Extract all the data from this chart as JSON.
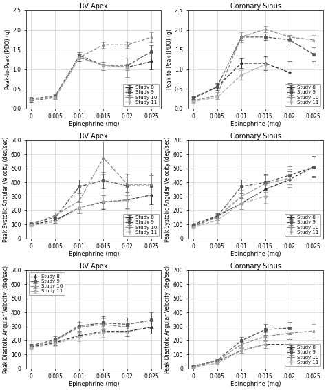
{
  "x_vals": [
    0,
    0.005,
    0.01,
    0.015,
    0.02,
    0.025
  ],
  "x_ticks": [
    0,
    0.005,
    0.01,
    0.015,
    0.02,
    0.025
  ],
  "x_label": "Epinephrine (mg)",
  "panel_titles": [
    [
      "RV Apex",
      "Coronary Sinus"
    ],
    [
      "RV Apex",
      "Coronary Sinus"
    ],
    [
      "RV Apex",
      "Coronary Sinus"
    ]
  ],
  "study_labels": [
    "Study 8",
    "Study 9",
    "Study 10",
    "Study 11"
  ],
  "row0_ylim": [
    0,
    2.5
  ],
  "row0_yticks": [
    0,
    0.5,
    1.0,
    1.5,
    2.0,
    2.5
  ],
  "row0_ylabel": "Peak-to-Peak (PDO) (g)",
  "row1_ylim": [
    0,
    700
  ],
  "row1_yticks": [
    0,
    100,
    200,
    300,
    400,
    500,
    600,
    700
  ],
  "row1_ylabel": "Peak Systolic Angular Velocity (deg/sec)",
  "row2_ylim": [
    0,
    700
  ],
  "row2_yticks": [
    0,
    100,
    200,
    300,
    400,
    500,
    600,
    700
  ],
  "row2_ylabel": "Peak Diastolic Angular Velocity (deg/sec)",
  "rv_apex_row0": {
    "y": [
      [
        0.2,
        0.28,
        1.3,
        1.1,
        1.05,
        1.2
      ],
      [
        0.25,
        0.32,
        1.35,
        1.1,
        1.1,
        1.45
      ],
      [
        0.22,
        0.3,
        1.3,
        1.62,
        1.62,
        1.82
      ],
      [
        0.22,
        0.28,
        1.3,
        1.1,
        1.05,
        null
      ]
    ],
    "yerr": [
      [
        0.04,
        0.04,
        0.1,
        0.12,
        0.25,
        0.2
      ],
      [
        0.04,
        0.04,
        0.08,
        0.08,
        0.12,
        0.15
      ],
      [
        0.04,
        0.04,
        0.08,
        0.08,
        0.08,
        0.12
      ],
      [
        0.04,
        0.04,
        0.08,
        0.12,
        0.25,
        null
      ]
    ]
  },
  "cs_row0": {
    "y": [
      [
        0.25,
        0.55,
        1.15,
        1.15,
        0.92,
        null
      ],
      [
        0.28,
        0.55,
        1.82,
        1.82,
        1.75,
        1.38
      ],
      [
        0.2,
        0.33,
        1.82,
        2.02,
        1.82,
        1.75
      ],
      [
        0.18,
        0.28,
        0.85,
        1.12,
        null,
        null
      ]
    ],
    "yerr": [
      [
        0.04,
        0.1,
        0.12,
        0.18,
        0.28,
        null
      ],
      [
        0.04,
        0.08,
        0.08,
        0.08,
        0.12,
        0.18
      ],
      [
        0.04,
        0.08,
        0.12,
        0.08,
        0.08,
        0.12
      ],
      [
        0.04,
        0.04,
        0.12,
        0.18,
        null,
        null
      ]
    ]
  },
  "rv_apex_row1": {
    "y": [
      [
        100,
        130,
        220,
        260,
        275,
        310
      ],
      [
        105,
        150,
        370,
        415,
        375,
        375
      ],
      [
        100,
        165,
        270,
        575,
        385,
        385
      ],
      [
        95,
        120,
        220,
        265,
        270,
        null
      ]
    ],
    "yerr": [
      [
        8,
        18,
        38,
        48,
        58,
        65
      ],
      [
        8,
        18,
        48,
        58,
        65,
        75
      ],
      [
        8,
        22,
        58,
        115,
        75,
        85
      ],
      [
        8,
        12,
        38,
        48,
        58,
        null
      ]
    ]
  },
  "cs_row1": {
    "y": [
      [
        100,
        160,
        250,
        350,
        420,
        510
      ],
      [
        90,
        155,
        370,
        400,
        450,
        510
      ],
      [
        85,
        150,
        300,
        390,
        430,
        null
      ],
      [
        80,
        130,
        250,
        300,
        null,
        null
      ]
    ],
    "yerr": [
      [
        8,
        18,
        38,
        48,
        58,
        65
      ],
      [
        8,
        22,
        48,
        58,
        65,
        75
      ],
      [
        8,
        18,
        48,
        58,
        65,
        null
      ],
      [
        8,
        18,
        38,
        48,
        null,
        null
      ]
    ]
  },
  "rv_apex_row2": {
    "y": [
      [
        155,
        185,
        235,
        265,
        265,
        295
      ],
      [
        165,
        205,
        305,
        325,
        315,
        345
      ],
      [
        158,
        198,
        295,
        315,
        295,
        null
      ],
      [
        148,
        178,
        225,
        258,
        258,
        null
      ]
    ],
    "yerr": [
      [
        12,
        18,
        28,
        32,
        38,
        45
      ],
      [
        12,
        22,
        38,
        45,
        45,
        55
      ],
      [
        12,
        18,
        38,
        42,
        45,
        null
      ],
      [
        12,
        18,
        28,
        32,
        38,
        null
      ]
    ]
  },
  "cs_row2": {
    "y": [
      [
        18,
        52,
        128,
        172,
        172,
        null
      ],
      [
        14,
        58,
        198,
        278,
        288,
        null
      ],
      [
        14,
        52,
        172,
        228,
        252,
        268
      ],
      [
        10,
        38,
        128,
        172,
        null,
        null
      ]
    ],
    "yerr": [
      [
        4,
        8,
        18,
        28,
        38,
        null
      ],
      [
        4,
        8,
        28,
        38,
        45,
        null
      ],
      [
        4,
        8,
        22,
        32,
        42,
        50
      ],
      [
        4,
        6,
        18,
        28,
        null,
        null
      ]
    ]
  },
  "markers": [
    "o",
    "s",
    "^",
    "D"
  ],
  "linestyles": [
    "--",
    "--",
    "--",
    "--"
  ],
  "colors": [
    "#333333",
    "#555555",
    "#888888",
    "#aaaaaa"
  ],
  "legend_loc_row2_col0": "upper left",
  "legend_loc_default": "lower right"
}
